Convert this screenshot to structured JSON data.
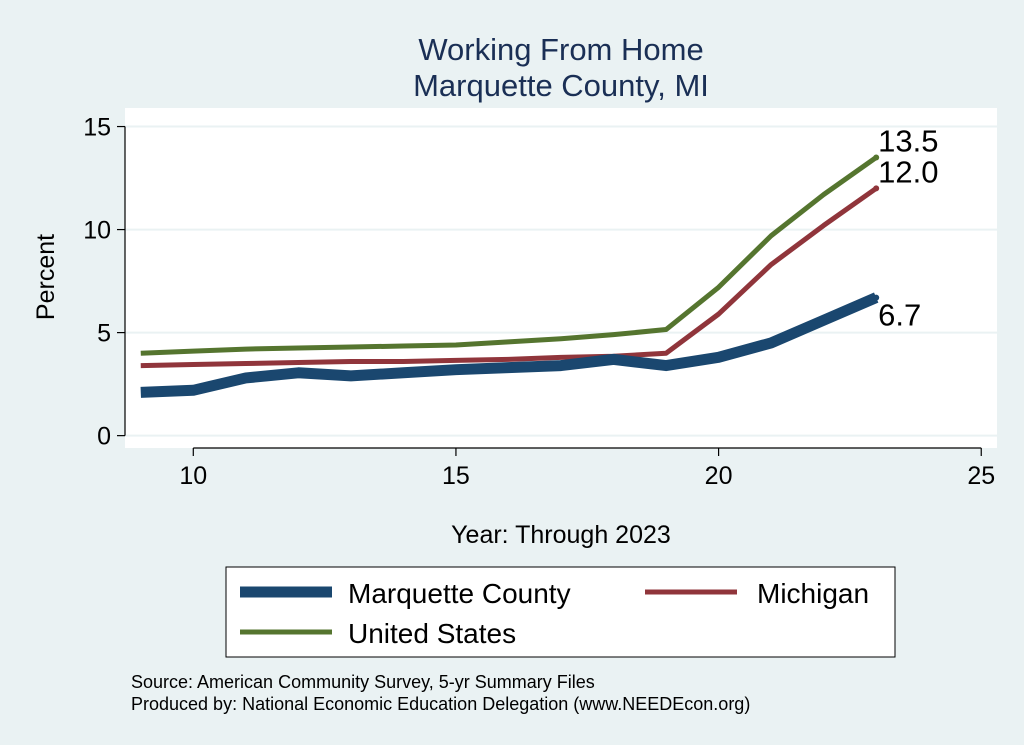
{
  "chart_data": {
    "type": "line",
    "title": "Working From Home",
    "subtitle": "Marquette County, MI",
    "xlabel": "Year: Through 2023",
    "ylabel": "Percent",
    "xlim": [
      8.7,
      25.3
    ],
    "ylim": [
      -0.6,
      15.9
    ],
    "x_ticks": [
      10,
      15,
      20,
      25
    ],
    "y_ticks": [
      0,
      5,
      10,
      15
    ],
    "grid": true,
    "legend_position": "bottom",
    "x": [
      9,
      10,
      11,
      12,
      13,
      14,
      15,
      16,
      17,
      18,
      19,
      20,
      21,
      22,
      23
    ],
    "series": [
      {
        "name": "Marquette County",
        "color": "#1a476f",
        "values": [
          2.1,
          2.2,
          2.8,
          3.05,
          2.9,
          3.05,
          3.2,
          3.3,
          3.4,
          3.7,
          3.4,
          3.8,
          4.5,
          5.6,
          6.7
        ],
        "end_label": "6.7"
      },
      {
        "name": "Michigan",
        "color": "#90353b",
        "values": [
          3.4,
          3.45,
          3.5,
          3.55,
          3.6,
          3.6,
          3.65,
          3.7,
          3.8,
          3.85,
          4.0,
          5.9,
          8.3,
          10.2,
          12.0
        ],
        "end_label": "12.0"
      },
      {
        "name": "United States",
        "color": "#55752f",
        "values": [
          4.0,
          4.1,
          4.2,
          4.25,
          4.3,
          4.35,
          4.4,
          4.55,
          4.7,
          4.9,
          5.15,
          7.2,
          9.7,
          11.7,
          13.5
        ],
        "end_label": "13.5"
      }
    ]
  },
  "notes": {
    "source": "Source: American Community Survey, 5-yr Summary Files",
    "produced_by": "Produced by: National Economic Education Delegation (www.NEEDEcon.org)"
  }
}
